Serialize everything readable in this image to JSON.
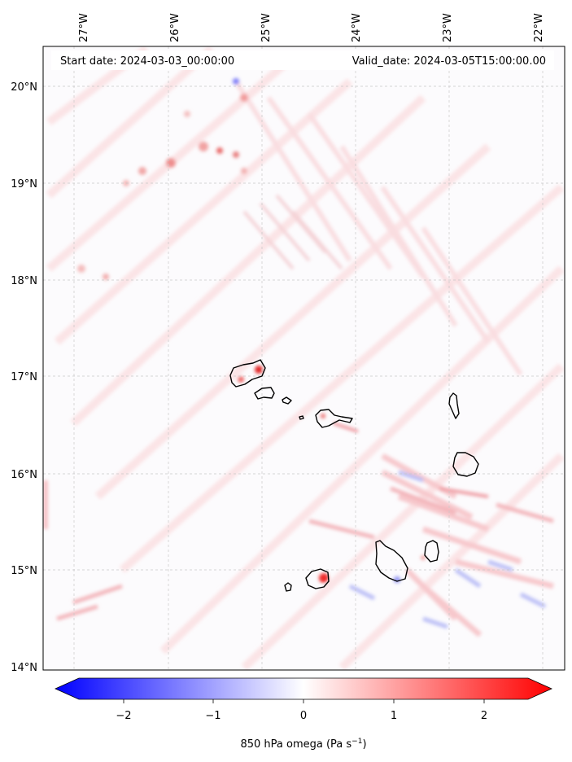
{
  "header": {
    "start_date": "Start date: 2024-03-03_00:00:00",
    "valid_date": "Valid_date: 2024-03-05T15:00:00.00"
  },
  "lon_labels": [
    "27°W",
    "26°W",
    "25°W",
    "24°W",
    "23°W",
    "22°W"
  ],
  "lat_labels": [
    "20°N",
    "19°N",
    "18°N",
    "17°N",
    "16°N",
    "15°N",
    "14°N"
  ],
  "colorbar": {
    "ticks": [
      "−2",
      "−1",
      "0",
      "1",
      "2"
    ],
    "label": "850 hPa omega (Pa s",
    "label_sup": "−1",
    "label_end": ")",
    "vmin": -2.6,
    "vmax": 2.6,
    "cmap": "bwr",
    "low_color": "#0000ff",
    "high_color": "#ff0000"
  },
  "map": {
    "lon_range": [
      -27.35,
      -21.8
    ],
    "lat_range": [
      13.95,
      20.42
    ],
    "islands": [
      "Santo Antão",
      "São Vicente",
      "Santa Luzia",
      "Branco",
      "Raso",
      "São Nicolau",
      "Sal",
      "Boa Vista",
      "Maio",
      "Santiago",
      "Fogo",
      "Brava"
    ]
  }
}
